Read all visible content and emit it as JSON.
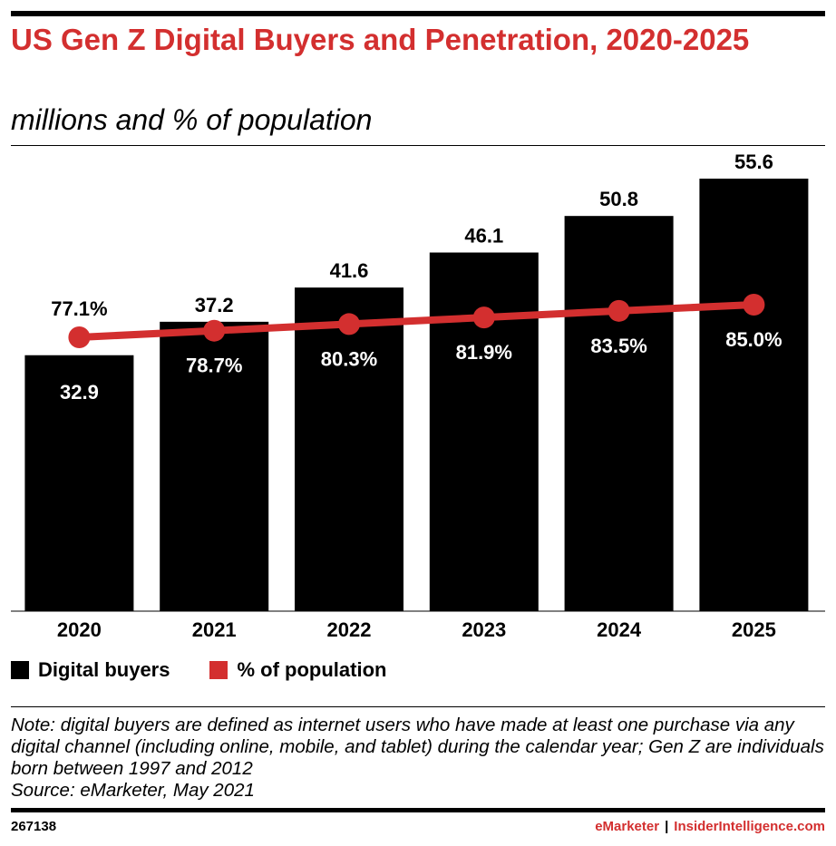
{
  "header": {
    "title": "US Gen Z Digital Buyers and Penetration, 2020-2025",
    "subtitle": "millions and % of population"
  },
  "chart_data": {
    "type": "bar",
    "categories": [
      "2020",
      "2021",
      "2022",
      "2023",
      "2024",
      "2025"
    ],
    "series": [
      {
        "name": "Digital buyers",
        "type": "bar",
        "values": [
          32.9,
          37.2,
          41.6,
          46.1,
          50.8,
          55.6
        ],
        "labels": [
          "32.9",
          "37.2",
          "41.6",
          "46.1",
          "50.8",
          "55.6"
        ],
        "color": "#000000"
      },
      {
        "name": "% of population",
        "type": "line",
        "values": [
          77.1,
          78.7,
          80.3,
          81.9,
          83.5,
          85.0
        ],
        "labels": [
          "77.1%",
          "78.7%",
          "80.3%",
          "81.9%",
          "83.5%",
          "85.0%"
        ],
        "color": "#d32f2f"
      }
    ],
    "ylim": [
      0,
      60
    ],
    "y2lim": [
      0,
      100
    ],
    "grid": false,
    "legend": "bottom-left"
  },
  "legend": {
    "items": [
      {
        "label": "Digital buyers",
        "color": "#000000"
      },
      {
        "label": "% of population",
        "color": "#d32f2f"
      }
    ]
  },
  "note": {
    "text": "Note: digital buyers are defined as internet users who have made at least one purchase via any digital channel (including online, mobile, and tablet) during the calendar year; Gen Z are individuals born between 1997 and 2012",
    "source": "Source: eMarketer, May 2021"
  },
  "footer": {
    "id": "267138",
    "brand_left": "eMarketer",
    "separator": "|",
    "brand_right": "InsiderIntelligence.com"
  }
}
